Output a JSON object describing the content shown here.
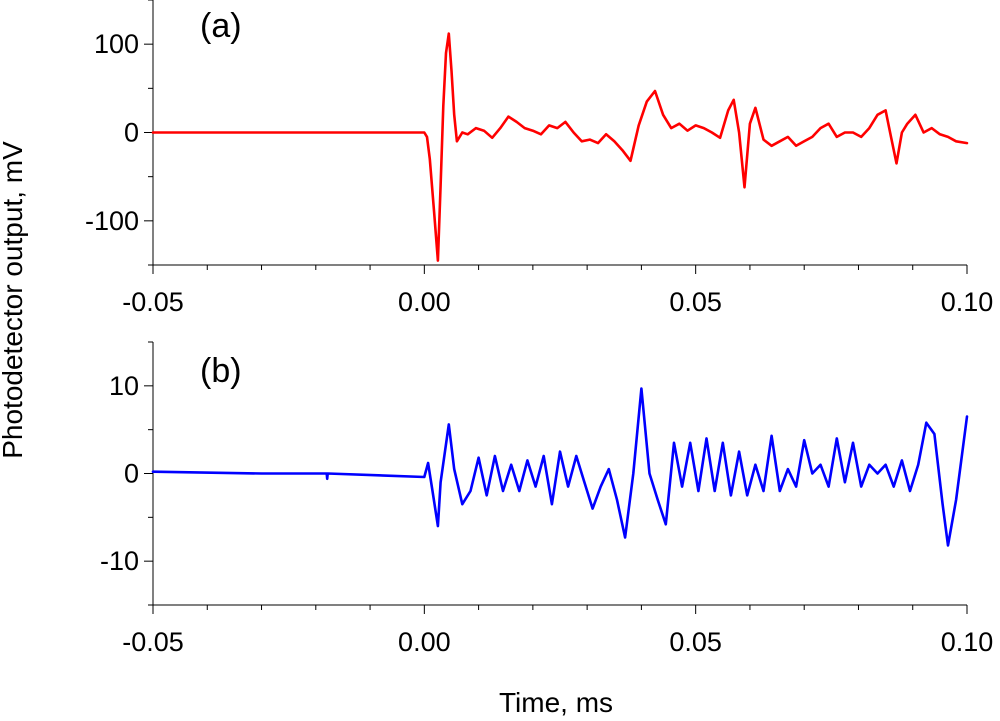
{
  "chart_data": [
    {
      "type": "line",
      "panel_label": "(a)",
      "color": "#ff0000",
      "xlim": [
        -0.05,
        0.1
      ],
      "ylim": [
        -150,
        150
      ],
      "x_ticks": [
        "-0.05",
        "0.00",
        "0.05",
        "0.10"
      ],
      "y_ticks": [
        "-100",
        "0",
        "100"
      ],
      "y_tick_values": [
        -100,
        0,
        100
      ],
      "series": [
        {
          "name": "Photodetector output (a)",
          "x": [
            -0.05,
            0.0,
            0.0005,
            0.001,
            0.0018,
            0.0025,
            0.003,
            0.0035,
            0.004,
            0.0045,
            0.005,
            0.0055,
            0.006,
            0.007,
            0.008,
            0.0095,
            0.011,
            0.0125,
            0.014,
            0.0155,
            0.017,
            0.0185,
            0.02,
            0.0215,
            0.023,
            0.0245,
            0.026,
            0.0275,
            0.029,
            0.0305,
            0.032,
            0.0335,
            0.035,
            0.0365,
            0.038,
            0.0395,
            0.041,
            0.0425,
            0.044,
            0.0455,
            0.047,
            0.0485,
            0.05,
            0.0515,
            0.053,
            0.0545,
            0.056,
            0.057,
            0.058,
            0.059,
            0.06,
            0.061,
            0.0625,
            0.064,
            0.0655,
            0.067,
            0.0685,
            0.07,
            0.0715,
            0.073,
            0.0745,
            0.076,
            0.0775,
            0.079,
            0.0805,
            0.082,
            0.0835,
            0.085,
            0.086,
            0.087,
            0.088,
            0.089,
            0.0905,
            0.092,
            0.0935,
            0.095,
            0.0965,
            0.098,
            0.1
          ],
          "y": [
            0,
            0,
            -5,
            -30,
            -90,
            -145,
            -60,
            30,
            90,
            112,
            70,
            20,
            -10,
            0,
            -2,
            5,
            2,
            -6,
            5,
            18,
            12,
            5,
            2,
            -2,
            8,
            5,
            12,
            0,
            -10,
            -8,
            -12,
            -2,
            -10,
            -20,
            -32,
            8,
            35,
            47,
            20,
            5,
            10,
            2,
            8,
            5,
            0,
            -6,
            25,
            37,
            0,
            -62,
            10,
            28,
            -8,
            -15,
            -10,
            -5,
            -15,
            -10,
            -5,
            5,
            10,
            -5,
            0,
            0,
            -5,
            5,
            20,
            25,
            -5,
            -35,
            0,
            10,
            20,
            0,
            5,
            -2,
            -5,
            -10,
            -12
          ]
        }
      ]
    },
    {
      "type": "line",
      "panel_label": "(b)",
      "color": "#0000ff",
      "xlim": [
        -0.05,
        0.1
      ],
      "ylim": [
        -15,
        15
      ],
      "x_ticks": [
        "-0.05",
        "0.00",
        "0.05",
        "0.10"
      ],
      "y_ticks": [
        "-10",
        "0",
        "10"
      ],
      "y_tick_values": [
        -10,
        0,
        10
      ],
      "series": [
        {
          "name": "Photodetector output (b)",
          "x": [
            -0.05,
            -0.03,
            -0.018,
            -0.0179,
            -0.0178,
            0.0,
            0.0007,
            0.0015,
            0.0025,
            0.003,
            0.0045,
            0.0055,
            0.007,
            0.0085,
            0.01,
            0.0115,
            0.013,
            0.0145,
            0.016,
            0.0175,
            0.019,
            0.0205,
            0.022,
            0.0235,
            0.025,
            0.0265,
            0.028,
            0.0295,
            0.031,
            0.0325,
            0.034,
            0.0355,
            0.037,
            0.0385,
            0.04,
            0.0415,
            0.043,
            0.0445,
            0.046,
            0.0475,
            0.049,
            0.0505,
            0.052,
            0.0535,
            0.055,
            0.0565,
            0.058,
            0.0595,
            0.061,
            0.0625,
            0.064,
            0.0655,
            0.067,
            0.0685,
            0.07,
            0.0715,
            0.073,
            0.0745,
            0.076,
            0.0775,
            0.079,
            0.0805,
            0.082,
            0.0835,
            0.085,
            0.0865,
            0.088,
            0.0895,
            0.091,
            0.0925,
            0.094,
            0.0955,
            0.0965,
            0.098,
            0.1
          ],
          "y": [
            0.2,
            0,
            0,
            -0.6,
            0,
            -0.4,
            1.2,
            -2,
            -6,
            -1,
            5.6,
            0.5,
            -3.5,
            -2,
            1.8,
            -2.5,
            2,
            -2,
            1,
            -2,
            1.5,
            -1.5,
            2,
            -3.5,
            2.5,
            -1.5,
            2,
            -1,
            -4,
            -1.5,
            0.5,
            -3,
            -7.3,
            0,
            9.7,
            0,
            -3,
            -5.8,
            3.5,
            -1.5,
            3.5,
            -2,
            4,
            -2,
            3.5,
            -2.5,
            2.5,
            -2.5,
            1,
            -2,
            4.3,
            -2,
            0.5,
            -1.5,
            3.8,
            0,
            1,
            -1.5,
            4,
            -1,
            3.5,
            -1.5,
            1,
            0,
            1,
            -1.5,
            1.5,
            -2,
            1,
            5.8,
            4.5,
            -3.5,
            -8.2,
            -3,
            6.5
          ]
        }
      ]
    }
  ],
  "xlabel": "Time, ms",
  "ylabel": "Photodetector output, mV"
}
